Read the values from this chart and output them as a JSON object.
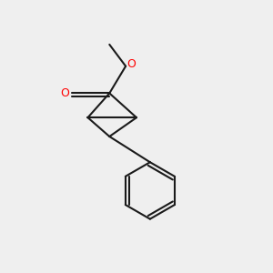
{
  "bg_color": "#efefef",
  "bond_color": "#1a1a1a",
  "o_color": "#ff0000",
  "line_width": 1.5,
  "fig_size": [
    3.0,
    3.0
  ],
  "dpi": 100
}
